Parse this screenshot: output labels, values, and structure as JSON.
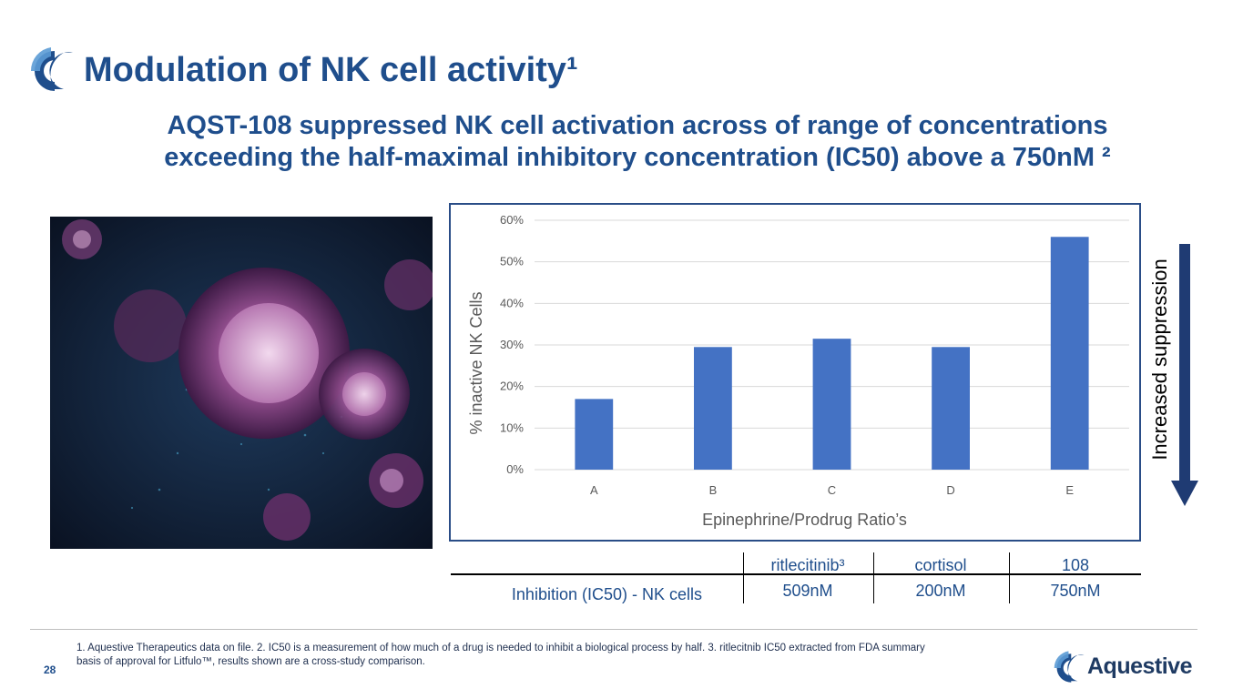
{
  "header": {
    "title": "Modulation of NK cell activity¹",
    "subtitle_line1": "AQST-108 suppressed NK cell activation across of range of concentrations",
    "subtitle_line2": "exceeding the half-maximal inhibitory concentration (IC50) above a 750nM ²"
  },
  "colors": {
    "brand_blue": "#1f4e8c",
    "bar_blue": "#4472c4",
    "arrow_navy": "#1f3b73"
  },
  "icons": {
    "logo": "aquestive-logo-icon",
    "arrow": "arrow-down-icon"
  },
  "chart_data": {
    "type": "bar",
    "categories": [
      "A",
      "B",
      "C",
      "D",
      "E"
    ],
    "values": [
      17,
      29.5,
      31.5,
      29.5,
      56
    ],
    "xlabel": "Epinephrine/Prodrug Ratio’s",
    "ylabel": "% inactive NK Cells",
    "ylim": [
      0,
      60
    ],
    "yticks": [
      0,
      10,
      20,
      30,
      40,
      50,
      60
    ],
    "ytick_labels": [
      "0%",
      "10%",
      "20%",
      "30%",
      "40%",
      "50%",
      "60%"
    ],
    "grid": true,
    "bar_color": "#4472c4"
  },
  "side_label": "Increased suppression",
  "ic50_table": {
    "headers": [
      "",
      "ritlecitinib³",
      "cortisol",
      "108"
    ],
    "row_label": "Inhibition (IC50) - NK cells",
    "values": [
      "509nM",
      "200nM",
      "750nM"
    ]
  },
  "footer": {
    "footnote_line1": "1. Aquestive Therapeutics data on file.  2. IC50 is a measurement of how much of a drug is needed to inhibit a biological process by half. 3. ritlecitnib IC50 extracted from FDA summary",
    "footnote_line2": "basis of approval for Litfulo™, results shown are a cross-study comparison.",
    "page_number": "28",
    "brand_name": "Aquestive"
  }
}
